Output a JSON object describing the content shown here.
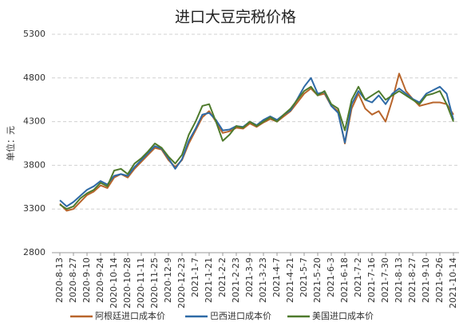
{
  "chart_data": {
    "type": "line",
    "title": "进口大豆完税价格",
    "y_label": "单位：元",
    "categories": [
      "2020-8-13",
      null,
      "2020-8-27",
      null,
      "2020-9-10",
      null,
      "2020-9-24",
      null,
      "2020-10-14",
      null,
      "2020-10-28",
      null,
      "2020-11-11",
      null,
      "2020-11-25",
      null,
      "2020-12-9",
      null,
      "2020-12-23",
      null,
      "2021-1-7",
      null,
      "2021-1-21",
      null,
      "2021-2-2",
      null,
      "2021-2-23",
      null,
      "2021-3-9",
      null,
      "2021-3-23",
      null,
      "2021-4-7",
      null,
      "2021-4-21",
      null,
      "2021-5-7",
      null,
      "2021-5-20",
      null,
      "2021-6-3",
      null,
      "2021-6-18",
      null,
      "2021-7-2",
      null,
      "2021-7-16",
      null,
      "2021-7-30",
      null,
      "2021-8-13",
      null,
      "2021-8-27",
      null,
      "2021-9-10",
      null,
      "2021-9-26",
      null,
      "2021-10-14"
    ],
    "series": [
      {
        "name": "阿根廷进口成本价",
        "color": "#b8652b",
        "values": [
          3360,
          3280,
          3300,
          3380,
          3460,
          3500,
          3570,
          3540,
          3660,
          3700,
          3660,
          3760,
          3840,
          3920,
          4000,
          3980,
          3860,
          3780,
          3860,
          4050,
          4200,
          4350,
          4420,
          4300,
          4170,
          4190,
          4230,
          4220,
          4280,
          4240,
          4290,
          4330,
          4300,
          4360,
          4420,
          4520,
          4620,
          4680,
          4600,
          4620,
          4480,
          4420,
          4050,
          4450,
          4620,
          4450,
          4380,
          4420,
          4300,
          4550,
          4850,
          4650,
          4560,
          4480,
          4500,
          4520,
          4520,
          4500,
          4380
        ]
      },
      {
        "name": "巴西进口成本价",
        "color": "#2e6aa6",
        "values": [
          3400,
          3330,
          3380,
          3450,
          3520,
          3560,
          3620,
          3580,
          3680,
          3700,
          3680,
          3780,
          3860,
          3940,
          4020,
          3990,
          3880,
          3760,
          3870,
          4080,
          4220,
          4380,
          4400,
          4320,
          4200,
          4210,
          4250,
          4240,
          4300,
          4260,
          4320,
          4360,
          4320,
          4380,
          4430,
          4560,
          4700,
          4800,
          4620,
          4640,
          4480,
          4400,
          4060,
          4500,
          4650,
          4550,
          4520,
          4600,
          4500,
          4620,
          4680,
          4620,
          4560,
          4520,
          4620,
          4660,
          4700,
          4620,
          4320
        ]
      },
      {
        "name": "美国进口成本价",
        "color": "#4e7a2c",
        "values": [
          3350,
          3300,
          3330,
          3420,
          3480,
          3520,
          3600,
          3560,
          3740,
          3760,
          3700,
          3820,
          3880,
          3960,
          4050,
          4000,
          3900,
          3820,
          3920,
          4150,
          4300,
          4480,
          4500,
          4300,
          4080,
          4150,
          4250,
          4230,
          4300,
          4250,
          4300,
          4350,
          4300,
          4380,
          4450,
          4550,
          4650,
          4700,
          4600,
          4650,
          4500,
          4450,
          4200,
          4550,
          4700,
          4550,
          4600,
          4650,
          4550,
          4600,
          4650,
          4600,
          4550,
          4500,
          4600,
          4620,
          4650,
          4500,
          4300
        ]
      }
    ],
    "ylim": [
      2800,
      5300
    ],
    "yticks": [
      2800,
      3300,
      3800,
      4300,
      4800,
      5300
    ],
    "grid": true,
    "legend": "bottom"
  }
}
